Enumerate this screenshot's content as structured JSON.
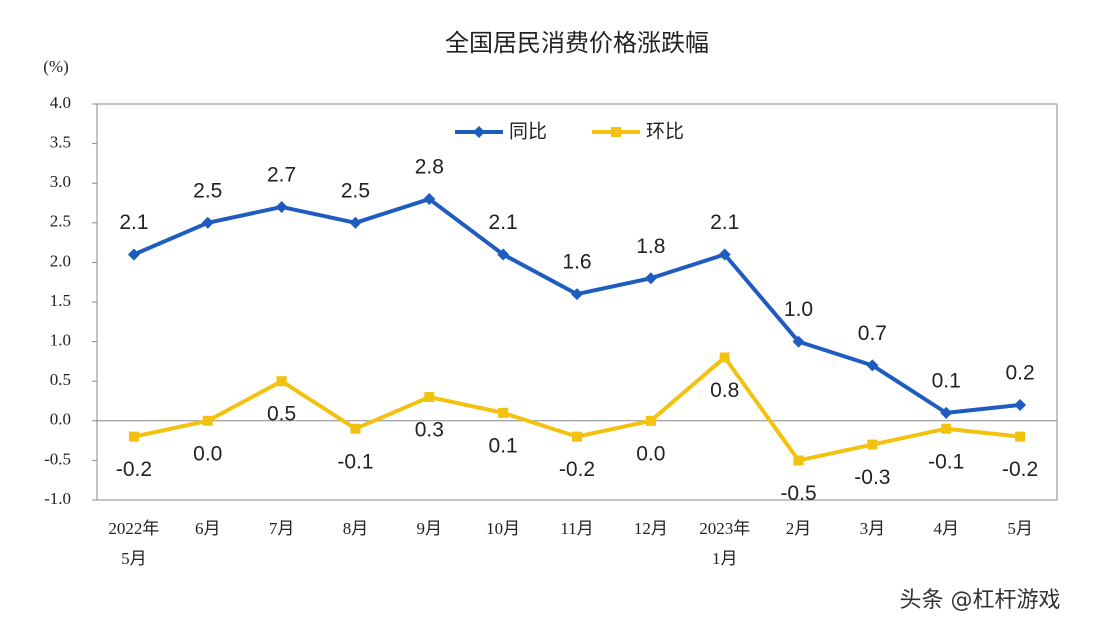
{
  "chart_data": {
    "type": "line",
    "title": "全国居民消费价格涨跌幅",
    "y_label": "(%)",
    "categories": [
      "2022年\n5月",
      "6月",
      "7月",
      "8月",
      "9月",
      "10月",
      "11月",
      "12月",
      "2023年\n1月",
      "2月",
      "3月",
      "4月",
      "5月"
    ],
    "series": [
      {
        "name": "同比",
        "color": "#1f5cc0",
        "marker": "diamond",
        "label_position": "above",
        "values": [
          2.1,
          2.5,
          2.7,
          2.5,
          2.8,
          2.1,
          1.6,
          1.8,
          2.1,
          1.0,
          0.7,
          0.1,
          0.2
        ],
        "value_labels": [
          "2.1",
          "2.5",
          "2.7",
          "2.5",
          "2.8",
          "2.1",
          "1.6",
          "1.8",
          "2.1",
          "1.0",
          "0.7",
          "0.1",
          "0.2"
        ]
      },
      {
        "name": "环比",
        "color": "#f2c20f",
        "marker": "square",
        "label_position": "below",
        "values": [
          -0.2,
          0.0,
          0.5,
          -0.1,
          0.3,
          0.1,
          -0.2,
          0.0,
          0.8,
          -0.5,
          -0.3,
          -0.1,
          -0.2
        ],
        "value_labels": [
          "-0.2",
          "0.0",
          "0.5",
          "-0.1",
          "0.3",
          "0.1",
          "-0.2",
          "0.0",
          "0.8",
          "-0.5",
          "-0.3",
          "-0.1",
          "-0.2"
        ]
      }
    ],
    "ylim": [
      -1.0,
      4.0
    ],
    "yticks": [
      {
        "value": -1.0,
        "label": "-1.0"
      },
      {
        "value": -0.5,
        "label": "-0.5"
      },
      {
        "value": 0,
        "label": "0.0"
      },
      {
        "value": 0.5,
        "label": "0.5"
      },
      {
        "value": 1.0,
        "label": "1.0"
      },
      {
        "value": 1.5,
        "label": "1.5"
      },
      {
        "value": 2.0,
        "label": "2.0"
      },
      {
        "value": 2.5,
        "label": "2.5"
      },
      {
        "value": 3.0,
        "label": "3.0"
      },
      {
        "value": 3.5,
        "label": "3.5"
      },
      {
        "value": 4.0,
        "label": "4.0"
      }
    ],
    "grid": false,
    "legend": "top",
    "watermark": "头条 @杠杆游戏"
  }
}
